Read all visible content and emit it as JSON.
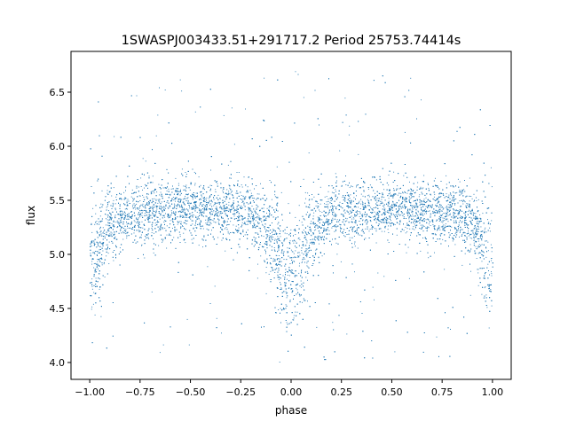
{
  "chart_data": {
    "type": "scatter",
    "title": "1SWASPJ003433.51+291717.2 Period 25753.74414s",
    "xlabel": "phase",
    "ylabel": "flux",
    "xlim": [
      -1.093,
      1.093
    ],
    "ylim": [
      3.844,
      6.877
    ],
    "xticks": [
      -1.0,
      -0.75,
      -0.5,
      -0.25,
      0.0,
      0.25,
      0.5,
      0.75,
      1.0
    ],
    "xtick_labels": [
      "−1.00",
      "−0.75",
      "−0.50",
      "−0.25",
      "0.00",
      "0.25",
      "0.50",
      "0.75",
      "1.00"
    ],
    "yticks": [
      4.0,
      4.5,
      5.0,
      5.5,
      6.0,
      6.5
    ],
    "ytick_labels": [
      "4.0",
      "4.5",
      "5.0",
      "5.5",
      "6.0",
      "6.5"
    ],
    "grid": false,
    "point_color": "#1f77b4",
    "x_range_of_points": [
      -1.0,
      1.0
    ],
    "binned_median_flux": {
      "phase": [
        -1.0,
        -0.95,
        -0.9,
        -0.8,
        -0.5,
        -0.2,
        -0.1,
        -0.05,
        0.0,
        0.05,
        0.1,
        0.2,
        0.5,
        0.8,
        0.9,
        0.95,
        1.0
      ],
      "flux": [
        4.85,
        5.05,
        5.3,
        5.38,
        5.42,
        5.38,
        5.2,
        4.95,
        4.78,
        4.95,
        5.2,
        5.38,
        5.42,
        5.38,
        5.3,
        5.05,
        4.85
      ]
    }
  }
}
